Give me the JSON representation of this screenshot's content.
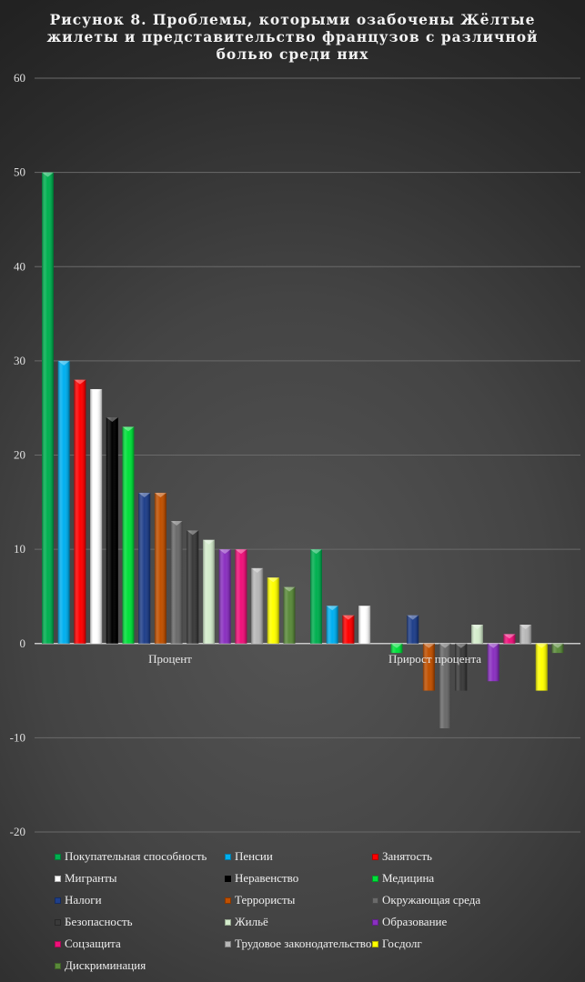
{
  "chart_data": {
    "type": "bar",
    "title": "Рисунок 8. Проблемы, которыми озабочены Жёлтые жилеты и представительство французов  с различной болью среди них",
    "categories": [
      "Процент",
      "Прирост процента"
    ],
    "ylim": [
      -20,
      60
    ],
    "yticks": [
      -20,
      -10,
      0,
      10,
      20,
      30,
      40,
      50,
      60
    ],
    "grid": true,
    "legend_position": "bottom",
    "series": [
      {
        "name": "Покупательная способность",
        "color": "#00b050",
        "values": [
          50,
          10
        ]
      },
      {
        "name": "Пенсии",
        "color": "#00b0f0",
        "values": [
          30,
          4
        ]
      },
      {
        "name": "Занятость",
        "color": "#ff0000",
        "values": [
          28,
          3
        ]
      },
      {
        "name": "Мигранты",
        "color": "#ffffff",
        "values": [
          27,
          4
        ]
      },
      {
        "name": "Неравенство",
        "color": "#000000",
        "values": [
          24,
          0
        ]
      },
      {
        "name": "Медицина",
        "color": "#00e03a",
        "values": [
          23,
          -1
        ]
      },
      {
        "name": "Налоги",
        "color": "#1f3f8a",
        "values": [
          16,
          3
        ]
      },
      {
        "name": "Террористы",
        "color": "#c05000",
        "values": [
          16,
          -5
        ]
      },
      {
        "name": "Окружающая среда",
        "color": "#6a6a6a",
        "values": [
          13,
          -9
        ]
      },
      {
        "name": "Безопасность",
        "color": "#3a3a3a",
        "values": [
          12,
          -5
        ]
      },
      {
        "name": "Жильё",
        "color": "#d4eccc",
        "values": [
          11,
          2
        ]
      },
      {
        "name": "Образование",
        "color": "#8a30c0",
        "values": [
          10,
          -4
        ]
      },
      {
        "name": "Соцзащита",
        "color": "#f0107a",
        "values": [
          10,
          1
        ]
      },
      {
        "name": "Трудовое законодательство",
        "color": "#b8b8b8",
        "values": [
          8,
          2
        ]
      },
      {
        "name": "Госдолг",
        "color": "#ffff00",
        "values": [
          7,
          -5
        ]
      },
      {
        "name": "Дискриминация",
        "color": "#5a8a3a",
        "values": [
          6,
          -1
        ]
      }
    ]
  }
}
